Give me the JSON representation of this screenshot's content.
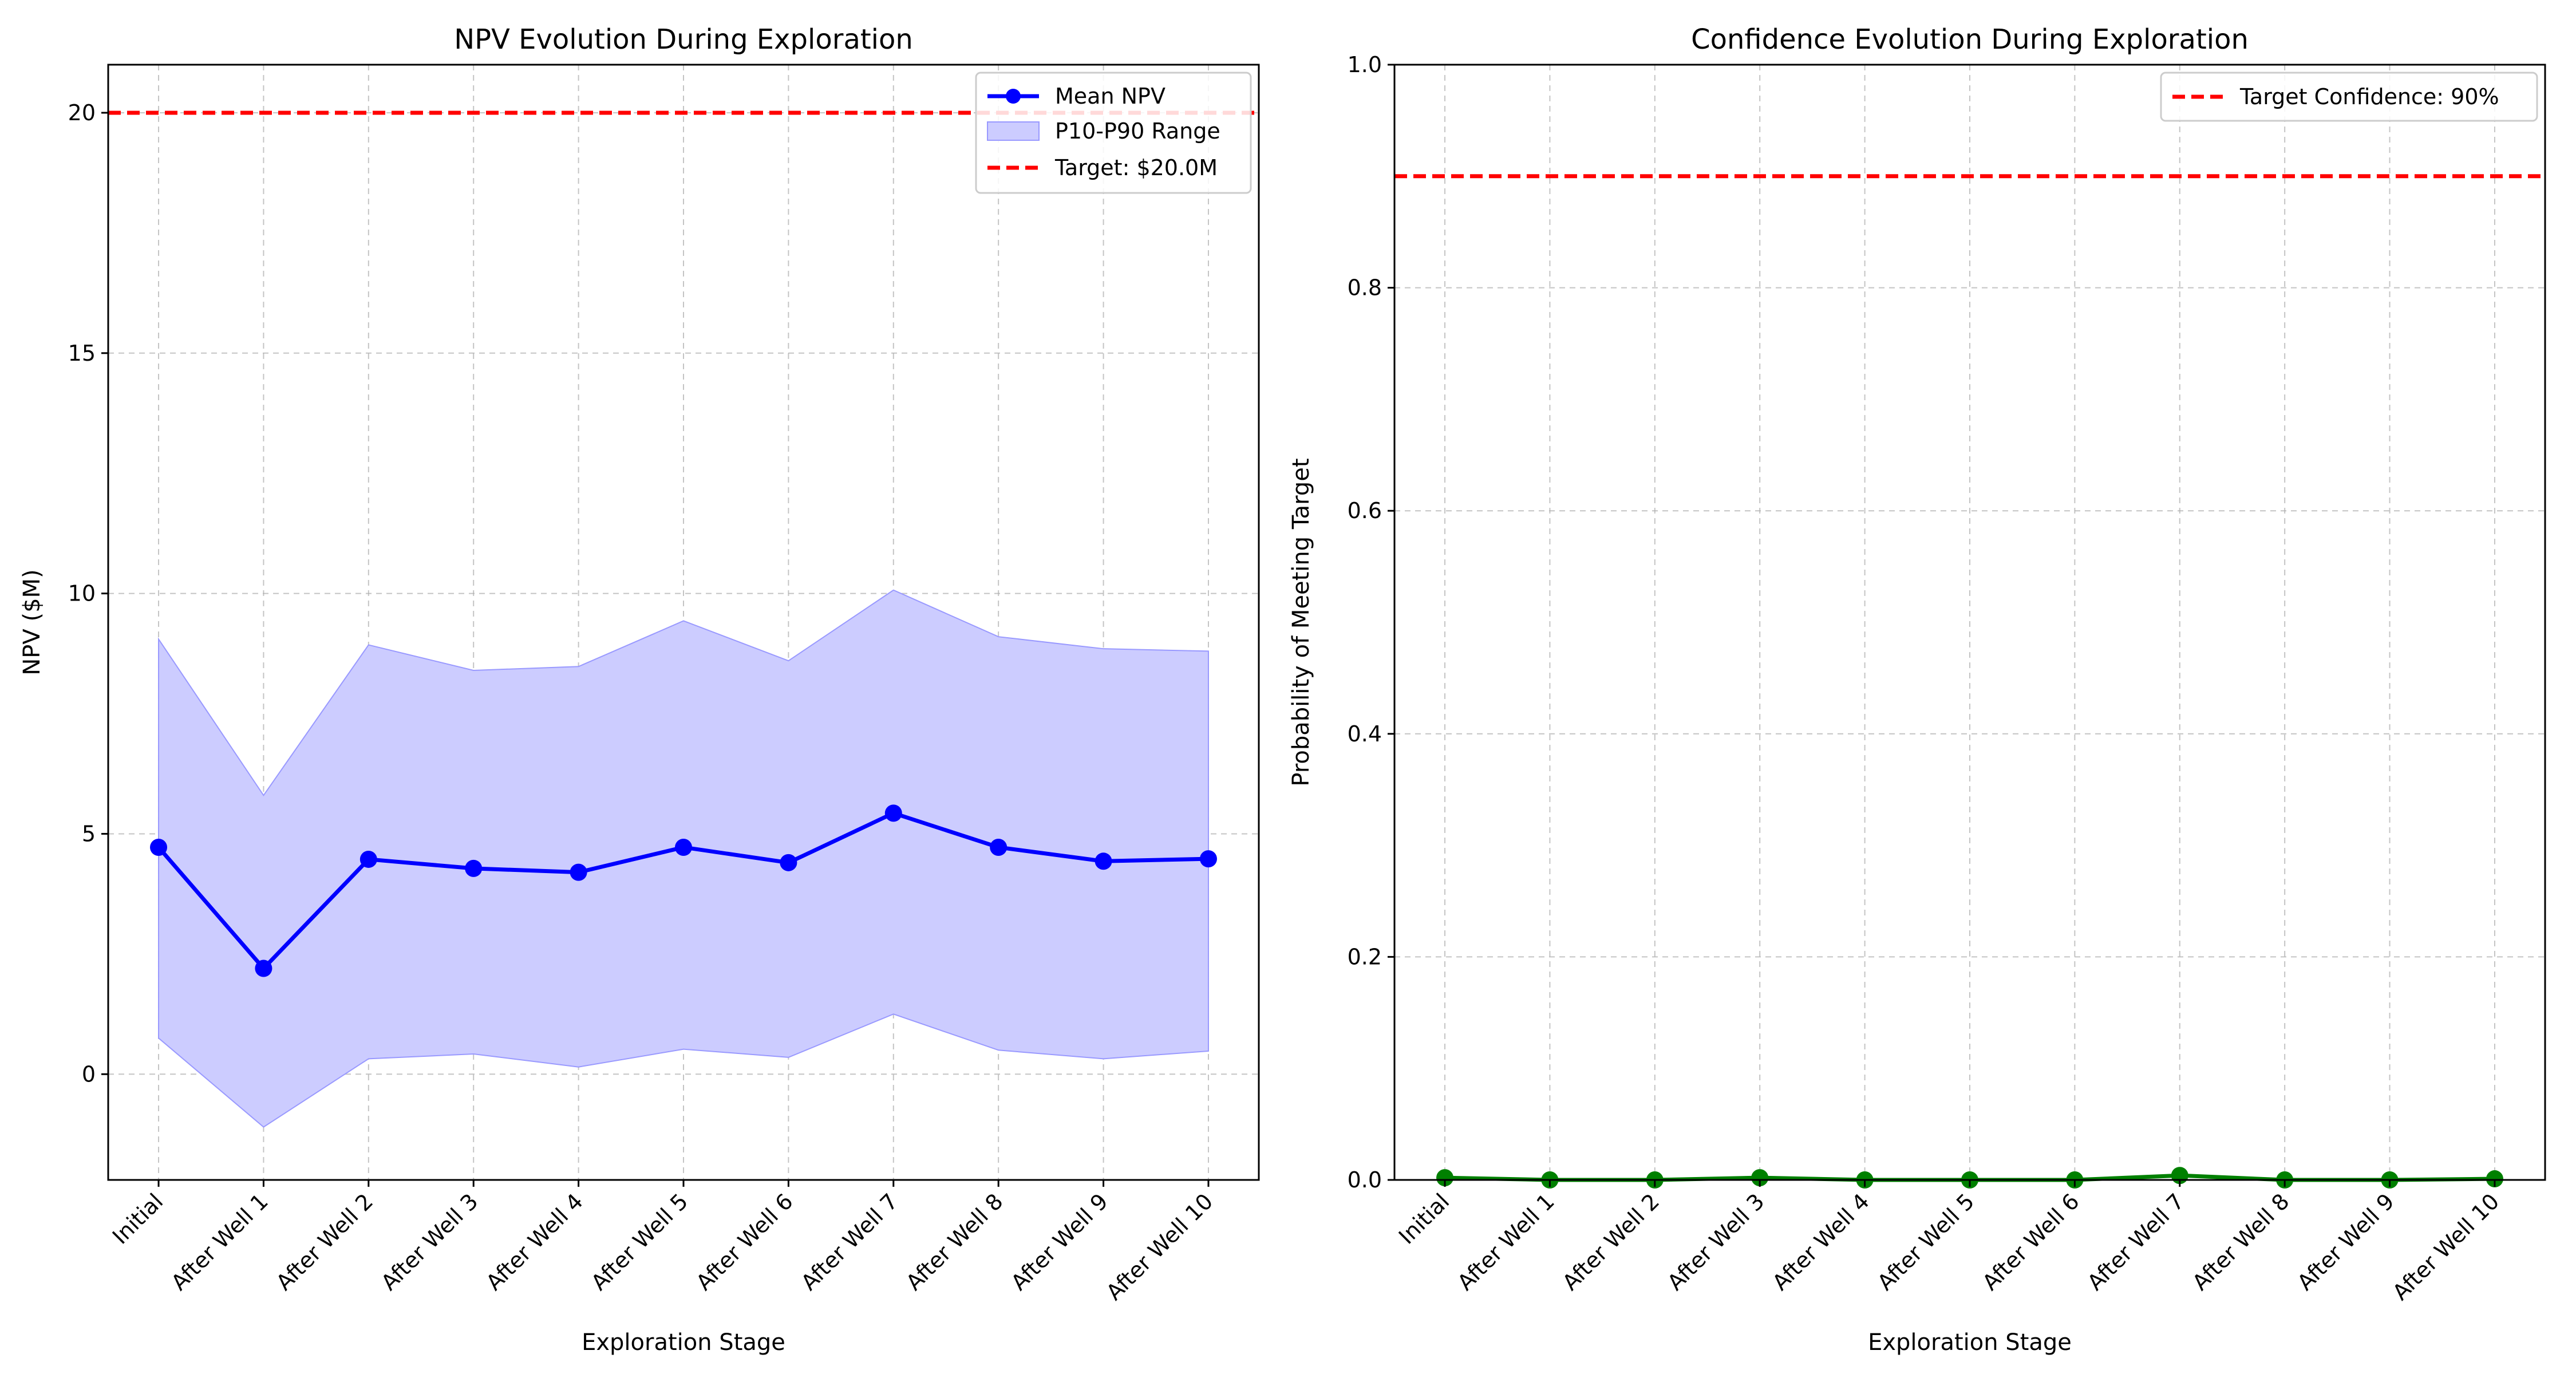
{
  "chart_data": [
    {
      "type": "line",
      "title": "NPV Evolution During Exploration",
      "xlabel": "Exploration Stage",
      "ylabel": "NPV ($M)",
      "categories": [
        "Initial",
        "After Well 1",
        "After Well 2",
        "After Well 3",
        "After Well 4",
        "After Well 5",
        "After Well 6",
        "After Well 7",
        "After Well 8",
        "After Well 9",
        "After Well 10"
      ],
      "ylim": [
        -2.2,
        21.0
      ],
      "yticks": [
        0,
        5,
        10,
        15,
        20
      ],
      "grid": true,
      "legend_position": "top-right",
      "series": [
        {
          "name": "Mean NPV",
          "kind": "line-markers",
          "color": "#0000ff",
          "values": [
            4.72,
            2.2,
            4.47,
            4.28,
            4.2,
            4.72,
            4.4,
            5.43,
            4.72,
            4.43,
            4.48
          ]
        },
        {
          "name": "P10-P90 Range",
          "kind": "band",
          "color": "#ccccff",
          "lower": [
            0.75,
            -1.1,
            0.32,
            0.42,
            0.15,
            0.52,
            0.35,
            1.25,
            0.5,
            0.32,
            0.48
          ],
          "upper": [
            9.05,
            5.8,
            8.93,
            8.4,
            8.48,
            9.43,
            8.6,
            10.07,
            9.1,
            8.85,
            8.8
          ]
        },
        {
          "name": "Target: $20.0M",
          "kind": "hline",
          "color": "#ff0000",
          "value": 20.0
        }
      ]
    },
    {
      "type": "line",
      "title": "Confidence Evolution During Exploration",
      "xlabel": "Exploration Stage",
      "ylabel": "Probability of Meeting Target",
      "categories": [
        "Initial",
        "After Well 1",
        "After Well 2",
        "After Well 3",
        "After Well 4",
        "After Well 5",
        "After Well 6",
        "After Well 7",
        "After Well 8",
        "After Well 9",
        "After Well 10"
      ],
      "ylim": [
        0.0,
        1.0
      ],
      "yticks": [
        0.0,
        0.2,
        0.4,
        0.6,
        0.8,
        1.0
      ],
      "grid": true,
      "legend_position": "top-right",
      "series": [
        {
          "name": "",
          "kind": "line-markers",
          "color": "#008000",
          "values": [
            0.002,
            0.0,
            0.0,
            0.002,
            0.0,
            0.0,
            0.0,
            0.004,
            0.0,
            0.0,
            0.001
          ]
        },
        {
          "name": "Target Confidence: 90%",
          "kind": "hline",
          "color": "#ff0000",
          "value": 0.9
        }
      ]
    }
  ]
}
